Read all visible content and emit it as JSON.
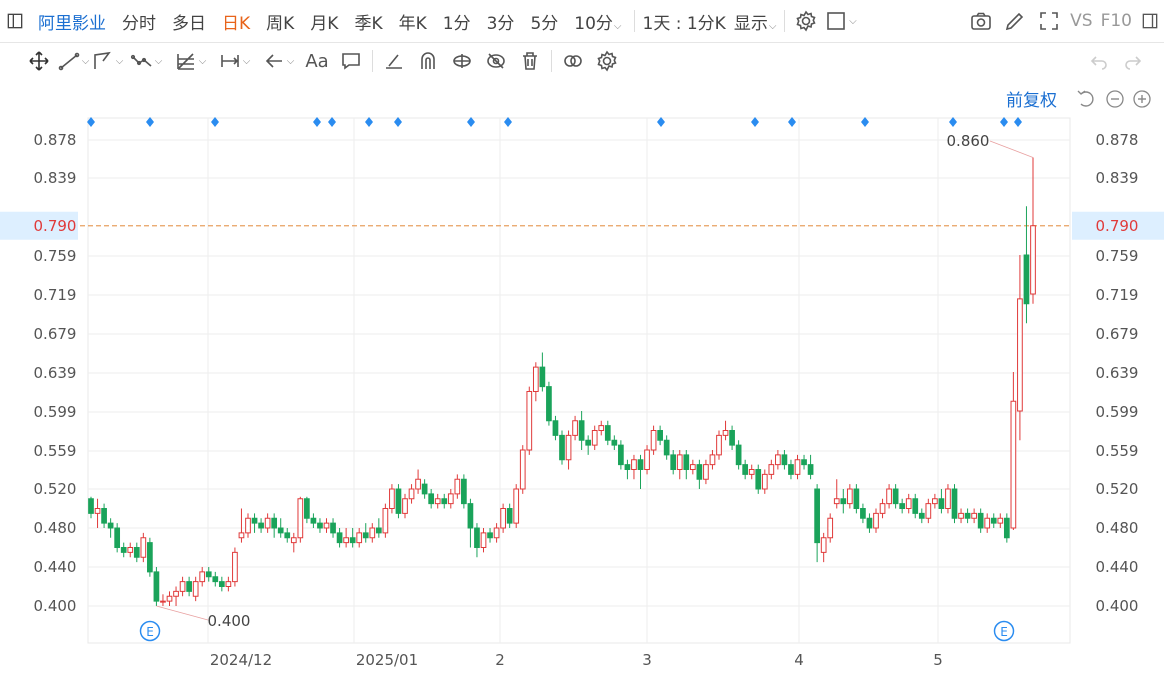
{
  "topbar": {
    "stock_name": "阿里影业",
    "periods": [
      "分时",
      "多日",
      "日K",
      "周K",
      "月K",
      "季K",
      "年K",
      "1分",
      "3分",
      "5分",
      "10分"
    ],
    "active_period": "日K",
    "interval_label": "1天 : 1分K",
    "display_label": "显示",
    "vs_label": "VS",
    "f10_label": "F10"
  },
  "toolbar": {
    "tools": [
      "move-tool",
      "line-tool",
      "channel-tool",
      "polyline-tool",
      "fib-tool",
      "measure-tool",
      "arrow-tool",
      "text-tool",
      "comment-tool",
      "brush-tool",
      "magnet-tool",
      "visibility-tool",
      "hide-tool",
      "delete-tool",
      "link-tool",
      "settings-tool"
    ],
    "text_tool_label": "Aa"
  },
  "chart_controls": {
    "adjust_label": "前复权"
  },
  "chart_data": {
    "type": "candlestick",
    "y_ticks": [
      "0.400",
      "0.440",
      "0.480",
      "0.520",
      "0.559",
      "0.599",
      "0.639",
      "0.679",
      "0.719",
      "0.759",
      "0.790",
      "0.839",
      "0.878"
    ],
    "ylim": [
      0.375,
      0.9
    ],
    "x_labels": [
      "2024/12",
      "2025/01",
      "2",
      "3",
      "4",
      "5"
    ],
    "current_price": "0.790",
    "max_label": "0.860",
    "min_label": "0.400",
    "event_marker": "E",
    "colors": {
      "up": "#e03a3a",
      "down": "#1aa35a",
      "current_line": "#e8a060",
      "current_bg": "#ddefff",
      "marker": "#2a8cf0"
    },
    "candles": [
      [
        0.51,
        0.495,
        0.512,
        0.49
      ],
      [
        0.495,
        0.5,
        0.51,
        0.48
      ],
      [
        0.5,
        0.485,
        0.505,
        0.48
      ],
      [
        0.485,
        0.48,
        0.49,
        0.47
      ],
      [
        0.48,
        0.46,
        0.485,
        0.455
      ],
      [
        0.46,
        0.455,
        0.465,
        0.45
      ],
      [
        0.455,
        0.46,
        0.465,
        0.45
      ],
      [
        0.46,
        0.45,
        0.465,
        0.445
      ],
      [
        0.45,
        0.47,
        0.475,
        0.445
      ],
      [
        0.465,
        0.435,
        0.47,
        0.43
      ],
      [
        0.435,
        0.405,
        0.44,
        0.4
      ],
      [
        0.405,
        0.405,
        0.412,
        0.4
      ],
      [
        0.405,
        0.41,
        0.415,
        0.4
      ],
      [
        0.41,
        0.415,
        0.42,
        0.4
      ],
      [
        0.415,
        0.425,
        0.43,
        0.41
      ],
      [
        0.425,
        0.415,
        0.43,
        0.41
      ],
      [
        0.41,
        0.425,
        0.43,
        0.405
      ],
      [
        0.425,
        0.435,
        0.44,
        0.42
      ],
      [
        0.435,
        0.43,
        0.44,
        0.425
      ],
      [
        0.43,
        0.425,
        0.435,
        0.42
      ],
      [
        0.425,
        0.42,
        0.43,
        0.415
      ],
      [
        0.42,
        0.425,
        0.43,
        0.415
      ],
      [
        0.425,
        0.455,
        0.46,
        0.42
      ],
      [
        0.47,
        0.475,
        0.5,
        0.465
      ],
      [
        0.475,
        0.49,
        0.495,
        0.47
      ],
      [
        0.49,
        0.485,
        0.495,
        0.475
      ],
      [
        0.485,
        0.48,
        0.49,
        0.475
      ],
      [
        0.48,
        0.49,
        0.495,
        0.475
      ],
      [
        0.49,
        0.48,
        0.495,
        0.47
      ],
      [
        0.48,
        0.475,
        0.49,
        0.47
      ],
      [
        0.475,
        0.47,
        0.48,
        0.465
      ],
      [
        0.465,
        0.47,
        0.475,
        0.455
      ],
      [
        0.47,
        0.51,
        0.512,
        0.465
      ],
      [
        0.51,
        0.49,
        0.512,
        0.485
      ],
      [
        0.49,
        0.485,
        0.495,
        0.48
      ],
      [
        0.485,
        0.48,
        0.49,
        0.475
      ],
      [
        0.48,
        0.485,
        0.49,
        0.475
      ],
      [
        0.485,
        0.475,
        0.49,
        0.47
      ],
      [
        0.475,
        0.465,
        0.48,
        0.46
      ],
      [
        0.465,
        0.47,
        0.48,
        0.46
      ],
      [
        0.47,
        0.465,
        0.48,
        0.46
      ],
      [
        0.465,
        0.475,
        0.48,
        0.46
      ],
      [
        0.475,
        0.47,
        0.485,
        0.465
      ],
      [
        0.47,
        0.48,
        0.485,
        0.465
      ],
      [
        0.48,
        0.475,
        0.49,
        0.47
      ],
      [
        0.475,
        0.5,
        0.505,
        0.47
      ],
      [
        0.5,
        0.52,
        0.525,
        0.495
      ],
      [
        0.52,
        0.495,
        0.525,
        0.49
      ],
      [
        0.495,
        0.51,
        0.515,
        0.49
      ],
      [
        0.51,
        0.52,
        0.525,
        0.505
      ],
      [
        0.52,
        0.53,
        0.54,
        0.515
      ],
      [
        0.525,
        0.515,
        0.53,
        0.51
      ],
      [
        0.515,
        0.505,
        0.52,
        0.5
      ],
      [
        0.505,
        0.51,
        0.515,
        0.5
      ],
      [
        0.51,
        0.505,
        0.515,
        0.5
      ],
      [
        0.505,
        0.515,
        0.52,
        0.5
      ],
      [
        0.515,
        0.53,
        0.535,
        0.51
      ],
      [
        0.53,
        0.505,
        0.535,
        0.5
      ],
      [
        0.505,
        0.48,
        0.51,
        0.46
      ],
      [
        0.48,
        0.46,
        0.485,
        0.45
      ],
      [
        0.46,
        0.475,
        0.48,
        0.455
      ],
      [
        0.475,
        0.47,
        0.48,
        0.465
      ],
      [
        0.47,
        0.48,
        0.485,
        0.465
      ],
      [
        0.48,
        0.5,
        0.505,
        0.475
      ],
      [
        0.5,
        0.485,
        0.505,
        0.48
      ],
      [
        0.485,
        0.52,
        0.525,
        0.48
      ],
      [
        0.52,
        0.56,
        0.565,
        0.515
      ],
      [
        0.56,
        0.62,
        0.625,
        0.555
      ],
      [
        0.62,
        0.645,
        0.65,
        0.61
      ],
      [
        0.645,
        0.625,
        0.66,
        0.62
      ],
      [
        0.625,
        0.59,
        0.63,
        0.585
      ],
      [
        0.59,
        0.575,
        0.595,
        0.57
      ],
      [
        0.575,
        0.55,
        0.58,
        0.545
      ],
      [
        0.55,
        0.575,
        0.58,
        0.54
      ],
      [
        0.575,
        0.59,
        0.595,
        0.57
      ],
      [
        0.59,
        0.57,
        0.6,
        0.56
      ],
      [
        0.57,
        0.565,
        0.575,
        0.555
      ],
      [
        0.565,
        0.58,
        0.585,
        0.56
      ],
      [
        0.58,
        0.585,
        0.59,
        0.575
      ],
      [
        0.585,
        0.57,
        0.59,
        0.565
      ],
      [
        0.57,
        0.565,
        0.575,
        0.56
      ],
      [
        0.565,
        0.545,
        0.57,
        0.54
      ],
      [
        0.545,
        0.54,
        0.55,
        0.53
      ],
      [
        0.54,
        0.55,
        0.555,
        0.53
      ],
      [
        0.55,
        0.54,
        0.555,
        0.52
      ],
      [
        0.54,
        0.56,
        0.565,
        0.535
      ],
      [
        0.56,
        0.58,
        0.585,
        0.555
      ],
      [
        0.58,
        0.57,
        0.585,
        0.565
      ],
      [
        0.57,
        0.555,
        0.575,
        0.55
      ],
      [
        0.555,
        0.54,
        0.56,
        0.535
      ],
      [
        0.54,
        0.555,
        0.56,
        0.53
      ],
      [
        0.555,
        0.54,
        0.56,
        0.53
      ],
      [
        0.54,
        0.545,
        0.55,
        0.535
      ],
      [
        0.545,
        0.53,
        0.55,
        0.52
      ],
      [
        0.53,
        0.545,
        0.55,
        0.525
      ],
      [
        0.545,
        0.555,
        0.56,
        0.54
      ],
      [
        0.555,
        0.575,
        0.58,
        0.55
      ],
      [
        0.575,
        0.58,
        0.59,
        0.57
      ],
      [
        0.58,
        0.565,
        0.585,
        0.56
      ],
      [
        0.565,
        0.545,
        0.57,
        0.54
      ],
      [
        0.545,
        0.535,
        0.55,
        0.53
      ],
      [
        0.535,
        0.54,
        0.545,
        0.53
      ],
      [
        0.54,
        0.52,
        0.545,
        0.515
      ],
      [
        0.52,
        0.535,
        0.54,
        0.515
      ],
      [
        0.535,
        0.545,
        0.55,
        0.53
      ],
      [
        0.545,
        0.555,
        0.56,
        0.54
      ],
      [
        0.555,
        0.545,
        0.56,
        0.54
      ],
      [
        0.545,
        0.535,
        0.55,
        0.53
      ],
      [
        0.535,
        0.55,
        0.555,
        0.53
      ],
      [
        0.55,
        0.545,
        0.555,
        0.54
      ],
      [
        0.545,
        0.535,
        0.555,
        0.53
      ],
      [
        0.52,
        0.465,
        0.525,
        0.445
      ],
      [
        0.455,
        0.47,
        0.475,
        0.445
      ],
      [
        0.47,
        0.49,
        0.495,
        0.465
      ],
      [
        0.505,
        0.51,
        0.53,
        0.5
      ],
      [
        0.51,
        0.505,
        0.52,
        0.495
      ],
      [
        0.505,
        0.52,
        0.525,
        0.5
      ],
      [
        0.52,
        0.5,
        0.525,
        0.495
      ],
      [
        0.5,
        0.49,
        0.505,
        0.485
      ],
      [
        0.49,
        0.48,
        0.495,
        0.475
      ],
      [
        0.48,
        0.495,
        0.5,
        0.475
      ],
      [
        0.495,
        0.505,
        0.51,
        0.49
      ],
      [
        0.505,
        0.52,
        0.525,
        0.5
      ],
      [
        0.52,
        0.505,
        0.525,
        0.5
      ],
      [
        0.505,
        0.5,
        0.51,
        0.495
      ],
      [
        0.5,
        0.51,
        0.515,
        0.495
      ],
      [
        0.51,
        0.495,
        0.515,
        0.49
      ],
      [
        0.495,
        0.49,
        0.5,
        0.485
      ],
      [
        0.49,
        0.505,
        0.51,
        0.485
      ],
      [
        0.505,
        0.51,
        0.515,
        0.5
      ],
      [
        0.51,
        0.5,
        0.52,
        0.495
      ],
      [
        0.5,
        0.52,
        0.525,
        0.495
      ],
      [
        0.52,
        0.49,
        0.525,
        0.485
      ],
      [
        0.49,
        0.495,
        0.5,
        0.485
      ],
      [
        0.495,
        0.49,
        0.5,
        0.485
      ],
      [
        0.49,
        0.495,
        0.5,
        0.485
      ],
      [
        0.495,
        0.48,
        0.5,
        0.475
      ],
      [
        0.48,
        0.49,
        0.495,
        0.475
      ],
      [
        0.49,
        0.485,
        0.495,
        0.48
      ],
      [
        0.485,
        0.49,
        0.495,
        0.48
      ],
      [
        0.49,
        0.47,
        0.495,
        0.465
      ],
      [
        0.48,
        0.61,
        0.64,
        0.478
      ],
      [
        0.6,
        0.715,
        0.76,
        0.57
      ],
      [
        0.76,
        0.71,
        0.81,
        0.69
      ],
      [
        0.72,
        0.79,
        0.86,
        0.71
      ]
    ]
  }
}
